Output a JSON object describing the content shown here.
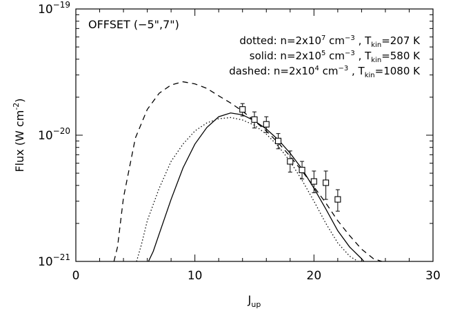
{
  "chart_data": {
    "type": "line",
    "title": "",
    "xlabel": "J",
    "xlabel_sub": "up",
    "ylabel": "Flux (W cm",
    "ylabel_sup": "-2",
    "ylabel_close": ")",
    "xlim": [
      0,
      30
    ],
    "ylim": [
      1e-21,
      1e-19
    ],
    "yscale": "log",
    "grid": false,
    "x_ticks": [
      0,
      10,
      20,
      30
    ],
    "x_tick_labels": [
      "0",
      "10",
      "20",
      "30"
    ],
    "y_ticks": [
      1e-21,
      1e-20,
      1e-19
    ],
    "y_tick_labels": [
      {
        "base": "10",
        "exp": "-21"
      },
      {
        "base": "10",
        "exp": "-20"
      },
      {
        "base": "10",
        "exp": "-19"
      }
    ],
    "offset_label": "OFFSET (−5\",7\")",
    "annotations": [
      {
        "style": "dotted",
        "prefix": "dotted: n=2x10",
        "n_exp": "7",
        "mid": " cm",
        "unit_exp": "−3",
        "t_label": " , T",
        "t_sub": "kin",
        "t_val": "=207 K"
      },
      {
        "style": "solid",
        "prefix": "solid: n=2x10",
        "n_exp": "5",
        "mid": " cm",
        "unit_exp": "−3",
        "t_label": " , T",
        "t_sub": "kin",
        "t_val": "=580 K"
      },
      {
        "style": "dashed",
        "prefix": "dashed: n=2x10",
        "n_exp": "4",
        "mid": " cm",
        "unit_exp": "−3",
        "t_label": " , T",
        "t_sub": "kin",
        "t_val": "=1080 K"
      }
    ],
    "series": [
      {
        "style": "dashed",
        "x": [
          3.2,
          3.5,
          4,
          5,
          6,
          7,
          8,
          9,
          10,
          11,
          12,
          13,
          14,
          15,
          16,
          17,
          18,
          19,
          20,
          21,
          22,
          23,
          24,
          25,
          25.7
        ],
        "y": [
          1e-21,
          1.3e-21,
          3.2e-21,
          9.5e-21,
          1.6e-20,
          2.15e-20,
          2.5e-20,
          2.65e-20,
          2.55e-20,
          2.35e-20,
          2.05e-20,
          1.8e-20,
          1.55e-20,
          1.3e-20,
          1.08e-20,
          8.7e-21,
          6.8e-21,
          5.2e-21,
          3.9e-21,
          2.9e-21,
          2.1e-21,
          1.6e-21,
          1.25e-21,
          1.05e-21,
          1e-21
        ]
      },
      {
        "style": "solid",
        "x": [
          6.1,
          6.5,
          7,
          8,
          9,
          10,
          11,
          12,
          13,
          14,
          15,
          16,
          17,
          18,
          19,
          20,
          21,
          22,
          23,
          24,
          24.2
        ],
        "y": [
          1e-21,
          1.2e-21,
          1.65e-21,
          3.1e-21,
          5.5e-21,
          8.5e-21,
          1.15e-20,
          1.4e-20,
          1.5e-20,
          1.45e-20,
          1.3e-20,
          1.12e-20,
          9.2e-21,
          7.2e-21,
          5.4e-21,
          3.8e-21,
          2.6e-21,
          1.75e-21,
          1.3e-21,
          1.05e-21,
          1e-21
        ]
      },
      {
        "style": "dotted",
        "x": [
          5.1,
          5.5,
          6,
          7,
          8,
          9,
          10,
          11,
          12,
          13,
          14,
          15,
          16,
          17,
          18,
          19,
          20,
          21,
          22,
          23,
          23.7
        ],
        "y": [
          1e-21,
          1.35e-21,
          2.1e-21,
          3.8e-21,
          6.2e-21,
          8.5e-21,
          1.08e-20,
          1.25e-20,
          1.35e-20,
          1.38e-20,
          1.32e-20,
          1.2e-20,
          1.02e-20,
          8.2e-21,
          6.2e-21,
          4.4e-21,
          3e-21,
          2e-21,
          1.4e-21,
          1.1e-21,
          1e-21
        ]
      }
    ],
    "observations": [
      {
        "x": 14,
        "y": 1.6e-20,
        "ylo": 1.42e-20,
        "yhi": 1.78e-20
      },
      {
        "x": 15,
        "y": 1.33e-20,
        "ylo": 1.14e-20,
        "yhi": 1.53e-20
      },
      {
        "x": 16,
        "y": 1.22e-20,
        "ylo": 1.05e-20,
        "yhi": 1.4e-20
      },
      {
        "x": 17,
        "y": 9e-21,
        "ylo": 7.8e-21,
        "yhi": 1.03e-20
      },
      {
        "x": 18,
        "y": 6.2e-21,
        "ylo": 5.1e-21,
        "yhi": 7.5e-21
      },
      {
        "x": 19,
        "y": 5.3e-21,
        "ylo": 4.5e-21,
        "yhi": 6.2e-21
      },
      {
        "x": 20,
        "y": 4.3e-21,
        "ylo": 3.5e-21,
        "yhi": 5.2e-21
      },
      {
        "x": 21,
        "y": 4.2e-21,
        "ylo": 3.1e-21,
        "yhi": 5.2e-21
      },
      {
        "x": 22,
        "y": 3.1e-21,
        "ylo": 2.5e-21,
        "yhi": 3.7e-21
      }
    ]
  }
}
